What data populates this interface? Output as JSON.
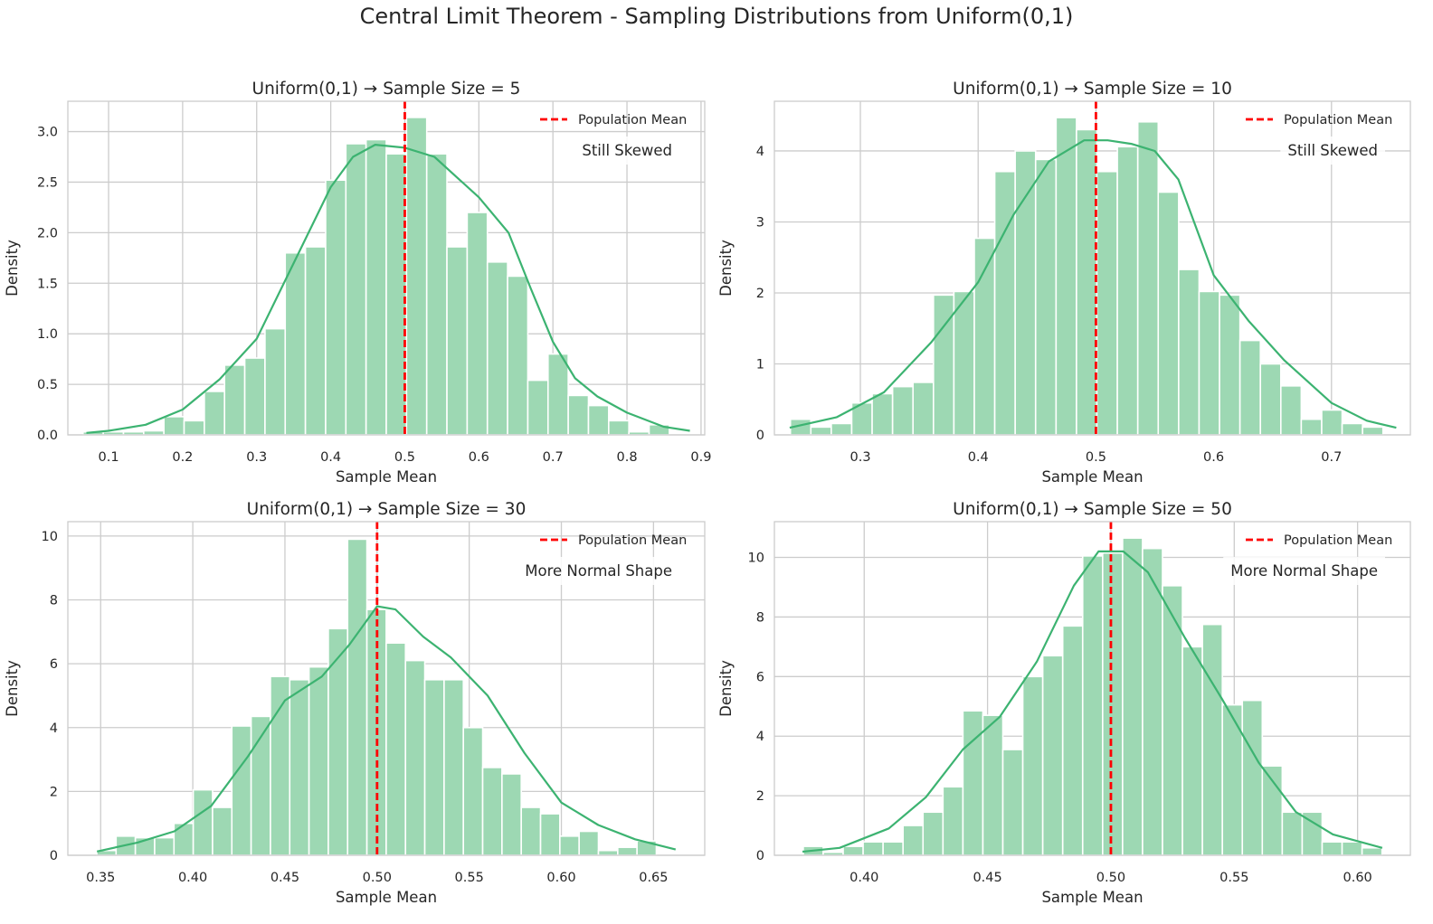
{
  "suptitle": "Central Limit Theorem - Sampling Distributions from Uniform(0,1)",
  "colors": {
    "bar_fill": "#9dd8b3",
    "kde_line": "#3cb371",
    "mean_line": "#ff0000",
    "grid": "#cccccc",
    "axes_edge": "#cccccc",
    "text": "#262626"
  },
  "chart_data": [
    {
      "type": "histogram",
      "title": "Uniform(0,1) → Sample Size = 5",
      "xlabel": "Sample Mean",
      "ylabel": "Density",
      "xlim": [
        0.045,
        0.905
      ],
      "ylim": [
        0,
        3.3
      ],
      "xticks": [
        0.1,
        0.2,
        0.3,
        0.4,
        0.5,
        0.6,
        0.7,
        0.8,
        0.9
      ],
      "xtick_labels": [
        "0.1",
        "0.2",
        "0.3",
        "0.4",
        "0.5",
        "0.6",
        "0.7",
        "0.8",
        "0.9"
      ],
      "yticks": [
        0,
        0.5,
        1.0,
        1.5,
        2.0,
        2.5,
        3.0
      ],
      "ytick_labels": [
        "0.0",
        "0.5",
        "1.0",
        "1.5",
        "2.0",
        "2.5",
        "3.0"
      ],
      "grid": true,
      "bin_start": 0.0655,
      "bin_width": 0.0273,
      "bin_values": [
        0.03,
        0.03,
        0.03,
        0.04,
        0.18,
        0.14,
        0.43,
        0.69,
        0.76,
        1.05,
        1.8,
        1.86,
        2.52,
        2.88,
        2.92,
        2.78,
        3.14,
        2.78,
        1.86,
        2.2,
        1.71,
        1.57,
        0.54,
        0.8,
        0.39,
        0.29,
        0.14,
        0.03,
        0.1
      ],
      "kde_x": [
        0.07,
        0.1,
        0.15,
        0.2,
        0.25,
        0.3,
        0.35,
        0.4,
        0.43,
        0.46,
        0.5,
        0.54,
        0.57,
        0.6,
        0.64,
        0.67,
        0.7,
        0.73,
        0.76,
        0.8,
        0.85,
        0.885
      ],
      "kde_y": [
        0.02,
        0.04,
        0.1,
        0.25,
        0.55,
        0.95,
        1.7,
        2.45,
        2.75,
        2.87,
        2.84,
        2.75,
        2.55,
        2.35,
        2.0,
        1.45,
        0.92,
        0.56,
        0.38,
        0.22,
        0.08,
        0.04
      ],
      "mean_line": 0.5,
      "legend": {
        "label": "Population Mean",
        "position": "upper right"
      },
      "annotation": "Still Skewed"
    },
    {
      "type": "histogram",
      "title": "Uniform(0,1) → Sample Size = 10",
      "xlabel": "Sample Mean",
      "ylabel": "Density",
      "xlim": [
        0.227,
        0.767
      ],
      "ylim": [
        0,
        4.7
      ],
      "xticks": [
        0.3,
        0.4,
        0.5,
        0.6,
        0.7
      ],
      "xtick_labels": [
        "0.3",
        "0.4",
        "0.5",
        "0.6",
        "0.7"
      ],
      "yticks": [
        0,
        1,
        2,
        3,
        4
      ],
      "ytick_labels": [
        "0",
        "1",
        "2",
        "3",
        "4"
      ],
      "grid": true,
      "bin_start": 0.2406,
      "bin_width": 0.01735,
      "bin_values": [
        0.22,
        0.11,
        0.16,
        0.45,
        0.58,
        0.68,
        0.74,
        1.97,
        2.02,
        2.77,
        3.71,
        4.0,
        3.88,
        4.47,
        4.3,
        3.71,
        4.06,
        4.41,
        3.42,
        2.33,
        2.02,
        1.97,
        1.33,
        1.0,
        0.69,
        0.22,
        0.35,
        0.16,
        0.11
      ],
      "kde_x": [
        0.24,
        0.28,
        0.32,
        0.36,
        0.4,
        0.43,
        0.46,
        0.49,
        0.51,
        0.53,
        0.55,
        0.57,
        0.6,
        0.63,
        0.66,
        0.7,
        0.73,
        0.755
      ],
      "kde_y": [
        0.1,
        0.25,
        0.6,
        1.3,
        2.15,
        3.1,
        3.85,
        4.15,
        4.15,
        4.1,
        4.0,
        3.6,
        2.25,
        1.6,
        1.05,
        0.45,
        0.2,
        0.1
      ],
      "mean_line": 0.5,
      "legend": {
        "label": "Population Mean",
        "position": "upper right"
      },
      "annotation": "Still Skewed"
    },
    {
      "type": "histogram",
      "title": "Uniform(0,1) → Sample Size = 30",
      "xlabel": "Sample Mean",
      "ylabel": "Density",
      "xlim": [
        0.3322,
        0.6778
      ],
      "ylim": [
        0,
        10.45
      ],
      "xticks": [
        0.35,
        0.4,
        0.45,
        0.5,
        0.55,
        0.6,
        0.65
      ],
      "xtick_labels": [
        "0.35",
        "0.40",
        "0.45",
        "0.50",
        "0.55",
        "0.60",
        "0.65"
      ],
      "yticks": [
        0,
        2,
        4,
        6,
        8,
        10
      ],
      "ytick_labels": [
        "0",
        "2",
        "4",
        "6",
        "8",
        "10"
      ],
      "grid": true,
      "bin_start": 0.3479,
      "bin_width": 0.01047,
      "bin_values": [
        0.15,
        0.6,
        0.55,
        0.55,
        1.0,
        2.05,
        1.5,
        4.05,
        4.35,
        5.6,
        5.5,
        5.9,
        7.1,
        9.9,
        7.7,
        6.65,
        6.1,
        5.5,
        5.5,
        4.0,
        2.75,
        2.55,
        1.5,
        1.3,
        0.6,
        0.75,
        0.15,
        0.25,
        0.45
      ],
      "kde_x": [
        0.348,
        0.37,
        0.39,
        0.41,
        0.43,
        0.45,
        0.47,
        0.485,
        0.5,
        0.51,
        0.525,
        0.54,
        0.56,
        0.58,
        0.6,
        0.62,
        0.64,
        0.662
      ],
      "kde_y": [
        0.12,
        0.4,
        0.75,
        1.55,
        3.1,
        4.85,
        5.6,
        6.6,
        7.8,
        7.7,
        6.85,
        6.2,
        5.0,
        3.2,
        1.65,
        0.95,
        0.5,
        0.18
      ],
      "mean_line": 0.5,
      "legend": {
        "label": "Population Mean",
        "position": "upper right"
      },
      "annotation": "More Normal Shape"
    },
    {
      "type": "histogram",
      "title": "Uniform(0,1) → Sample Size = 50",
      "xlabel": "Sample Mean",
      "ylabel": "Density",
      "xlim": [
        0.3636,
        0.6214
      ],
      "ylim": [
        0,
        11.2
      ],
      "xticks": [
        0.4,
        0.45,
        0.5,
        0.55,
        0.6
      ],
      "xtick_labels": [
        "0.40",
        "0.45",
        "0.50",
        "0.55",
        "0.60"
      ],
      "yticks": [
        0,
        2,
        4,
        6,
        8,
        10
      ],
      "ytick_labels": [
        "0",
        "2",
        "4",
        "6",
        "8",
        "10"
      ],
      "grid": true,
      "bin_start": 0.3753,
      "bin_width": 0.00809,
      "bin_values": [
        0.3,
        0.1,
        0.3,
        0.45,
        0.45,
        1.0,
        1.45,
        2.3,
        4.85,
        4.7,
        3.55,
        6.0,
        6.7,
        7.7,
        10.05,
        10.15,
        10.65,
        10.3,
        9.05,
        7.0,
        7.75,
        5.05,
        5.2,
        3.0,
        1.45,
        1.45,
        0.45,
        0.45,
        0.25
      ],
      "kde_x": [
        0.375,
        0.39,
        0.41,
        0.425,
        0.44,
        0.455,
        0.47,
        0.485,
        0.495,
        0.505,
        0.515,
        0.53,
        0.545,
        0.56,
        0.575,
        0.59,
        0.61
      ],
      "kde_y": [
        0.12,
        0.25,
        0.9,
        1.95,
        3.55,
        4.65,
        6.5,
        9.05,
        10.2,
        10.2,
        9.5,
        7.3,
        5.25,
        3.1,
        1.45,
        0.7,
        0.25
      ],
      "mean_line": 0.5,
      "legend": {
        "label": "Population Mean",
        "position": "upper right"
      },
      "annotation": "More Normal Shape"
    }
  ]
}
